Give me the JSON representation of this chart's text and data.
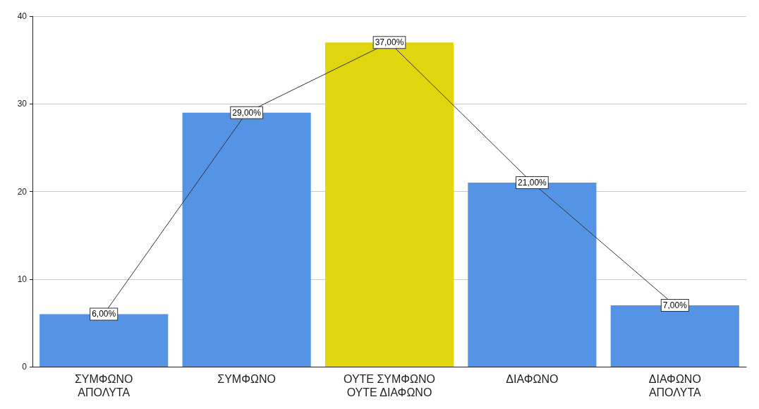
{
  "chart_data": {
    "type": "bar",
    "categories": [
      "ΣΥΜΦΩΝΟ ΑΠΟΛΥΤΑ",
      "ΣΥΜΦΩΝΟ",
      "ΟΥΤΕ ΣΥΜΦΩΝΟ ΟΥΤΕ ΔΙΑΦΩΝΟ",
      "ΔΙΑΦΩΝΟ",
      "ΔΙΑΦΩΝΟ ΑΠΟΛΥΤΑ"
    ],
    "series": [
      {
        "type": "bar",
        "colors": [
          "#5594e4",
          "#5594e4",
          "#e0d60e",
          "#5594e4",
          "#5594e4"
        ],
        "values": [
          6,
          29,
          37,
          21,
          7
        ]
      },
      {
        "type": "line",
        "color": "#333333",
        "values": [
          6,
          29,
          37,
          21,
          7
        ],
        "value_labels": [
          "6,00%",
          "29,00%",
          "37,00%",
          "21,00%",
          "7,00%"
        ]
      }
    ],
    "ylim": [
      0,
      40
    ],
    "yticks": [
      0,
      10,
      20,
      30,
      40
    ],
    "grid": "y",
    "line_style": "solid"
  }
}
